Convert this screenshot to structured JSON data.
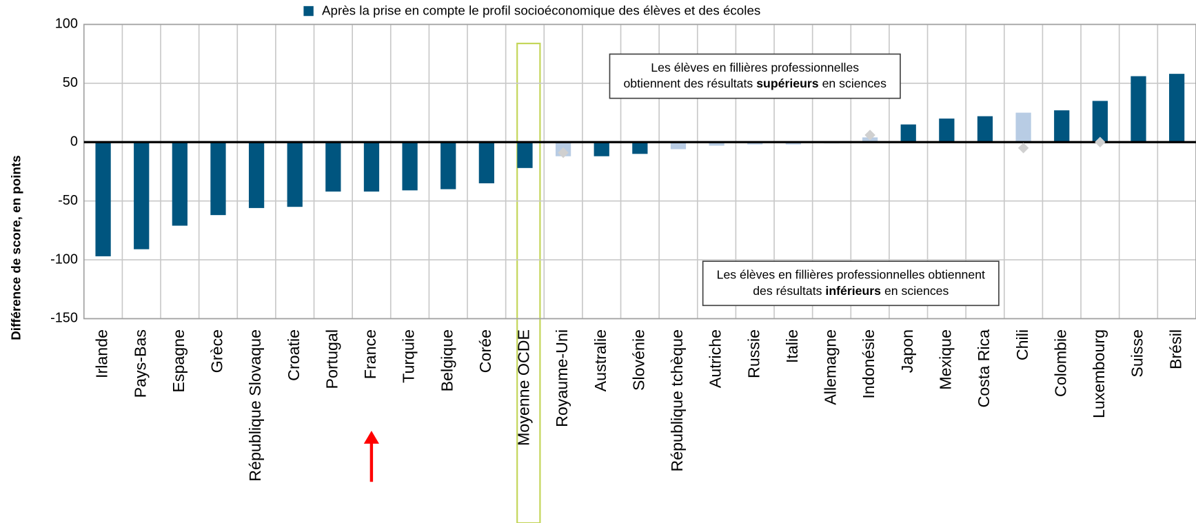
{
  "chart_data": {
    "type": "bar",
    "y_label": "Différence de score, en points",
    "categories": [
      "Irlande",
      "Pays-Bas",
      "Espagne",
      "Grèce",
      "République Slovaque",
      "Croatie",
      "Portugal",
      "France",
      "Turquie",
      "Belgique",
      "Corée",
      "Moyenne OCDE",
      "Royaume-Uni",
      "Australie",
      "Slovénie",
      "République tchèque",
      "Autriche",
      "Russie",
      "Italie",
      "Allemagne",
      "Indonésie",
      "Japon",
      "Mexique",
      "Costa Rica",
      "Chili",
      "Colombie",
      "Luxembourg",
      "Suisse",
      "Brésil"
    ],
    "series": [
      {
        "name": "Après la prise en compte le profil socioéconomique des élèves et des écoles",
        "color": "#00557f",
        "values": [
          -97,
          -91,
          -71,
          -62,
          -56,
          -55,
          -42,
          -42,
          -41,
          -40,
          -35,
          -22,
          -12,
          -12,
          -10,
          -6,
          -3,
          -2,
          -2,
          -1,
          4,
          15,
          20,
          22,
          25,
          27,
          35,
          56,
          58
        ],
        "colors": [
          "#00557f",
          "#00557f",
          "#00557f",
          "#00557f",
          "#00557f",
          "#00557f",
          "#00557f",
          "#00557f",
          "#00557f",
          "#00557f",
          "#00557f",
          "#00557f",
          "#b8cce4",
          "#00557f",
          "#00557f",
          "#b8cce4",
          "#b8cce4",
          "#b8cce4",
          "#b8cce4",
          "#00557f",
          "#b8cce4",
          "#00557f",
          "#00557f",
          "#00557f",
          "#b8cce4",
          "#00557f",
          "#00557f",
          "#00557f",
          "#00557f"
        ]
      },
      {
        "marker": "diamond",
        "color": "#d0d0d0",
        "values": [
          null,
          null,
          null,
          null,
          null,
          null,
          null,
          null,
          null,
          null,
          null,
          null,
          -9,
          null,
          null,
          null,
          null,
          null,
          null,
          null,
          6,
          null,
          null,
          null,
          -5,
          null,
          0,
          null,
          null
        ]
      }
    ],
    "ylim": [
      -150,
      100
    ],
    "yticks": [
      -150,
      -100,
      -50,
      0,
      50,
      100
    ],
    "grid": true,
    "annotations": [
      {
        "at": [
          17.5,
          56
        ],
        "segments": [
          [
            {
              "text": "Les élèves en fillières professionnelles",
              "bold": false
            }
          ],
          [
            {
              "text": "obtiennent des résultats ",
              "bold": false
            },
            {
              "text": "supérieurs",
              "bold": true
            },
            {
              "text": " en sciences",
              "bold": false
            }
          ]
        ]
      },
      {
        "at": [
          20,
          -120
        ],
        "segments": [
          [
            {
              "text": "Les élèves en fillières professionnelles obtiennent",
              "bold": false
            }
          ],
          [
            {
              "text": "des résultats ",
              "bold": false
            },
            {
              "text": "inférieurs",
              "bold": true
            },
            {
              "text": " en sciences",
              "bold": false
            }
          ]
        ]
      }
    ]
  }
}
